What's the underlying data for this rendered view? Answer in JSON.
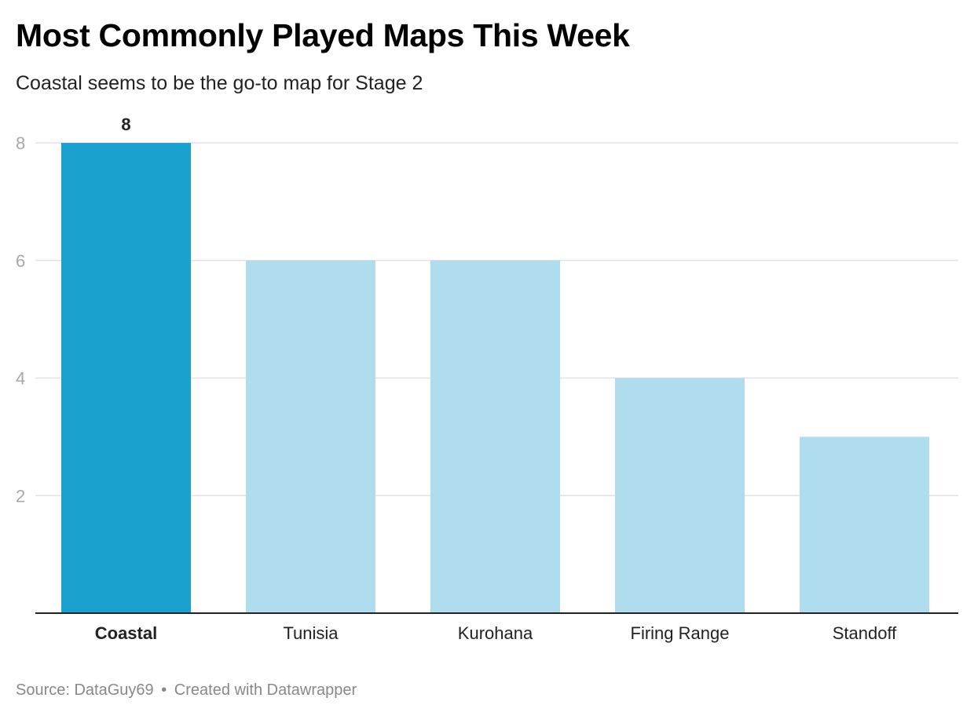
{
  "chart_data": {
    "type": "bar",
    "title": "Most Commonly Played Maps This Week",
    "subtitle": "Coastal seems to be the go-to map for Stage 2",
    "categories": [
      "Coastal",
      "Tunisia",
      "Kurohana",
      "Firing Range",
      "Standoff"
    ],
    "values": [
      8,
      6,
      6,
      4,
      3
    ],
    "highlight_index": 0,
    "highlight_label": "8",
    "yticks": [
      2,
      4,
      6,
      8
    ],
    "ylim": [
      0,
      8
    ],
    "grid": true,
    "colors": {
      "highlight": "#1aa1cf",
      "default": "#b0dded",
      "grid": "#e2e2e2",
      "axis": "#222222",
      "tick_text": "#a8a8a8"
    }
  },
  "footer": {
    "source": "Source: DataGuy69",
    "separator": "•",
    "credit": "Created with Datawrapper"
  }
}
